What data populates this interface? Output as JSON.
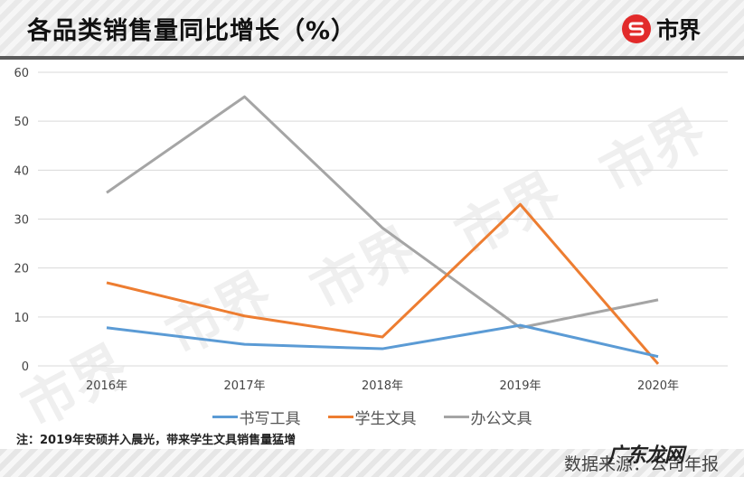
{
  "header": {
    "title": "各品类销售量同比增长（%）",
    "logo_text": "市界",
    "logo_color": "#e22a2a"
  },
  "watermark_text": "市界",
  "legend": [
    {
      "label": "书写工具",
      "color": "#5b9bd5"
    },
    {
      "label": "学生文具",
      "color": "#ed7d31"
    },
    {
      "label": "办公文具",
      "color": "#a5a5a5"
    }
  ],
  "note": "注：2019年安硕并入晨光，带来学生文具销售量猛增",
  "source": "数据来源：公司年报",
  "site_mark": "广东龙网",
  "chart_data": {
    "type": "line",
    "title": "各品类销售量同比增长（%）",
    "xlabel": "",
    "ylabel": "",
    "categories": [
      "2016年",
      "2017年",
      "2018年",
      "2019年",
      "2020年"
    ],
    "ylim": [
      0,
      60
    ],
    "yticks": [
      0,
      10,
      20,
      30,
      40,
      50,
      60
    ],
    "grid": true,
    "legend_position": "bottom",
    "series": [
      {
        "name": "书写工具",
        "color": "#5b9bd5",
        "values": [
          7.8,
          4.4,
          3.5,
          8.3,
          1.9
        ]
      },
      {
        "name": "学生文具",
        "color": "#ed7d31",
        "values": [
          17.0,
          10.2,
          5.9,
          33.0,
          0.4
        ]
      },
      {
        "name": "办公文具",
        "color": "#a5a5a5",
        "values": [
          35.4,
          55.0,
          28.2,
          7.8,
          13.5
        ]
      }
    ]
  }
}
